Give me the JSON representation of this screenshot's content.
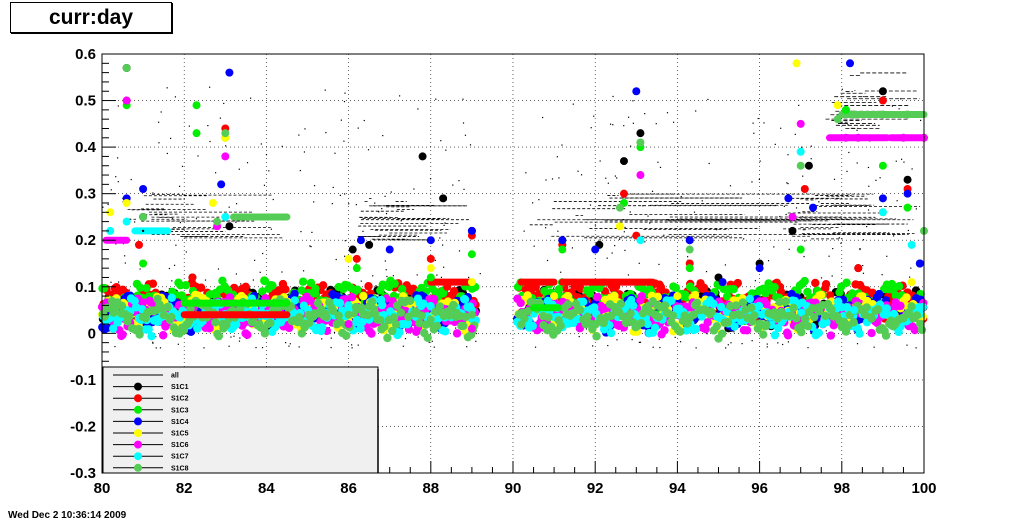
{
  "title": "curr:day",
  "timestamp": "Wed Dec  2 10:36:14 2009",
  "chart_data": {
    "type": "scatter",
    "title": "curr:day",
    "xlim": [
      80,
      100
    ],
    "ylim": [
      -0.3,
      0.6
    ],
    "x_ticks": [
      "80",
      "82",
      "84",
      "86",
      "88",
      "90",
      "92",
      "94",
      "96",
      "98",
      "100"
    ],
    "y_ticks": [
      "0.6",
      "0.5",
      "0.4",
      "0.3",
      "0.2",
      "0.1",
      "0",
      "-0.1",
      "-0.2",
      "-0.3"
    ],
    "grid": true,
    "legend_position": "bottom-left",
    "legend": [
      "all",
      "S1C1",
      "S1C2",
      "S1C3",
      "S1C4",
      "S1C5",
      "S1C6",
      "S1C7",
      "S1C8"
    ],
    "series": [
      {
        "name": "all",
        "color": "#000000",
        "marker": "dot",
        "points": [
          [
            80.6,
            0.57
          ],
          [
            81.0,
            0.22
          ],
          [
            82.2,
            0.12
          ],
          [
            83.1,
            0.23
          ],
          [
            86.1,
            0.18
          ],
          [
            87.8,
            0.38
          ],
          [
            88.3,
            0.29
          ],
          [
            89.0,
            0.22
          ],
          [
            91.2,
            0.2
          ],
          [
            92.7,
            0.37
          ],
          [
            93.1,
            0.43
          ],
          [
            94.3,
            0.2
          ],
          [
            96.0,
            0.15
          ],
          [
            96.8,
            0.22
          ],
          [
            97.2,
            0.36
          ],
          [
            99.0,
            0.52
          ],
          [
            99.6,
            0.33
          ],
          [
            99.9,
            0.15
          ]
        ]
      },
      {
        "name": "S1C1",
        "color": "#000000",
        "marker": "circle",
        "points": [
          [
            80.6,
            0.57
          ],
          [
            81.0,
            0.25
          ],
          [
            82.2,
            0.12
          ],
          [
            83.1,
            0.23
          ],
          [
            86.1,
            0.18
          ],
          [
            86.5,
            0.19
          ],
          [
            87.8,
            0.38
          ],
          [
            88.3,
            0.29
          ],
          [
            89.0,
            0.22
          ],
          [
            91.2,
            0.2
          ],
          [
            92.1,
            0.19
          ],
          [
            92.7,
            0.37
          ],
          [
            93.1,
            0.43
          ],
          [
            94.3,
            0.2
          ],
          [
            95.0,
            0.12
          ],
          [
            96.0,
            0.15
          ],
          [
            96.8,
            0.22
          ],
          [
            97.2,
            0.36
          ],
          [
            98.4,
            0.14
          ],
          [
            99.0,
            0.52
          ],
          [
            99.6,
            0.33
          ],
          [
            99.9,
            0.15
          ]
        ]
      },
      {
        "name": "S1C2",
        "color": "#ff0000",
        "marker": "circle",
        "points": [
          [
            80.6,
            0.5
          ],
          [
            80.9,
            0.19
          ],
          [
            82.2,
            0.12
          ],
          [
            83.0,
            0.44
          ],
          [
            86.2,
            0.16
          ],
          [
            88.0,
            0.16
          ],
          [
            88.4,
            0.1
          ],
          [
            89.0,
            0.21
          ],
          [
            91.2,
            0.19
          ],
          [
            92.7,
            0.3
          ],
          [
            93.0,
            0.21
          ],
          [
            94.3,
            0.15
          ],
          [
            97.1,
            0.31
          ],
          [
            98.4,
            0.14
          ],
          [
            99.0,
            0.5
          ],
          [
            99.6,
            0.31
          ]
        ]
      },
      {
        "name": "S1C3",
        "color": "#00ee00",
        "marker": "circle",
        "points": [
          [
            80.6,
            0.49
          ],
          [
            81.0,
            0.15
          ],
          [
            82.3,
            0.49
          ],
          [
            82.3,
            0.43
          ],
          [
            83.0,
            0.42
          ],
          [
            86.2,
            0.14
          ],
          [
            88.0,
            0.12
          ],
          [
            89.0,
            0.17
          ],
          [
            91.2,
            0.18
          ],
          [
            92.7,
            0.28
          ],
          [
            93.1,
            0.4
          ],
          [
            94.3,
            0.14
          ],
          [
            97.0,
            0.18
          ],
          [
            98.1,
            0.48
          ],
          [
            99.0,
            0.36
          ],
          [
            99.6,
            0.27
          ]
        ]
      },
      {
        "name": "S1C4",
        "color": "#0000ff",
        "marker": "circle",
        "points": [
          [
            80.6,
            0.29
          ],
          [
            81.0,
            0.31
          ],
          [
            82.9,
            0.32
          ],
          [
            83.1,
            0.56
          ],
          [
            86.3,
            0.2
          ],
          [
            87.0,
            0.18
          ],
          [
            88.0,
            0.2
          ],
          [
            89.0,
            0.22
          ],
          [
            91.2,
            0.2
          ],
          [
            92.0,
            0.18
          ],
          [
            93.0,
            0.52
          ],
          [
            94.3,
            0.2
          ],
          [
            95.1,
            0.11
          ],
          [
            96.0,
            0.14
          ],
          [
            96.7,
            0.29
          ],
          [
            97.3,
            0.27
          ],
          [
            98.2,
            0.58
          ],
          [
            99.0,
            0.29
          ],
          [
            99.6,
            0.3
          ],
          [
            99.9,
            0.15
          ]
        ]
      },
      {
        "name": "S1C5",
        "color": "#ffff00",
        "marker": "circle",
        "points": [
          [
            80.2,
            0.26
          ],
          [
            80.6,
            0.28
          ],
          [
            82.7,
            0.28
          ],
          [
            83.0,
            0.42
          ],
          [
            86.0,
            0.16
          ],
          [
            88.0,
            0.14
          ],
          [
            89.0,
            0.11
          ],
          [
            91.0,
            0.08
          ],
          [
            92.6,
            0.23
          ],
          [
            94.0,
            0.08
          ],
          [
            96.9,
            0.58
          ],
          [
            97.9,
            0.49
          ],
          [
            98.5,
            0.08
          ],
          [
            99.0,
            0.26
          ],
          [
            99.7,
            0.11
          ]
        ]
      },
      {
        "name": "S1C6",
        "color": "#ff00ff",
        "marker": "circle",
        "points": [
          [
            80.6,
            0.5
          ],
          [
            82.8,
            0.23
          ],
          [
            83.0,
            0.38
          ],
          [
            86.0,
            0.02
          ],
          [
            89.0,
            0.01
          ],
          [
            93.1,
            0.34
          ],
          [
            96.8,
            0.25
          ],
          [
            97.0,
            0.45
          ],
          [
            98.1,
            0.42
          ],
          [
            98.4,
            0.42
          ],
          [
            99.5,
            0.42
          ],
          [
            100.0,
            0.42
          ]
        ]
      },
      {
        "name": "S1C7",
        "color": "#00ffff",
        "marker": "circle",
        "points": [
          [
            80.2,
            0.22
          ],
          [
            80.6,
            0.24
          ],
          [
            83.0,
            0.25
          ],
          [
            86.0,
            0.05
          ],
          [
            89.0,
            0.05
          ],
          [
            93.1,
            0.2
          ],
          [
            97.0,
            0.39
          ],
          [
            98.3,
            0.05
          ],
          [
            99.0,
            0.26
          ],
          [
            99.7,
            0.19
          ]
        ]
      },
      {
        "name": "S1C8",
        "color": "#55cc55",
        "marker": "circle",
        "points": [
          [
            80.6,
            0.57
          ],
          [
            81.0,
            0.25
          ],
          [
            82.8,
            0.24
          ],
          [
            83.0,
            0.43
          ],
          [
            86.0,
            0.04
          ],
          [
            88.0,
            0.03
          ],
          [
            89.0,
            0.04
          ],
          [
            92.6,
            0.27
          ],
          [
            93.1,
            0.41
          ],
          [
            94.3,
            0.18
          ],
          [
            97.0,
            0.36
          ],
          [
            97.9,
            0.46
          ],
          [
            98.3,
            0.47
          ],
          [
            99.0,
            0.47
          ],
          [
            99.6,
            0.47
          ],
          [
            100.0,
            0.22
          ]
        ]
      }
    ]
  }
}
